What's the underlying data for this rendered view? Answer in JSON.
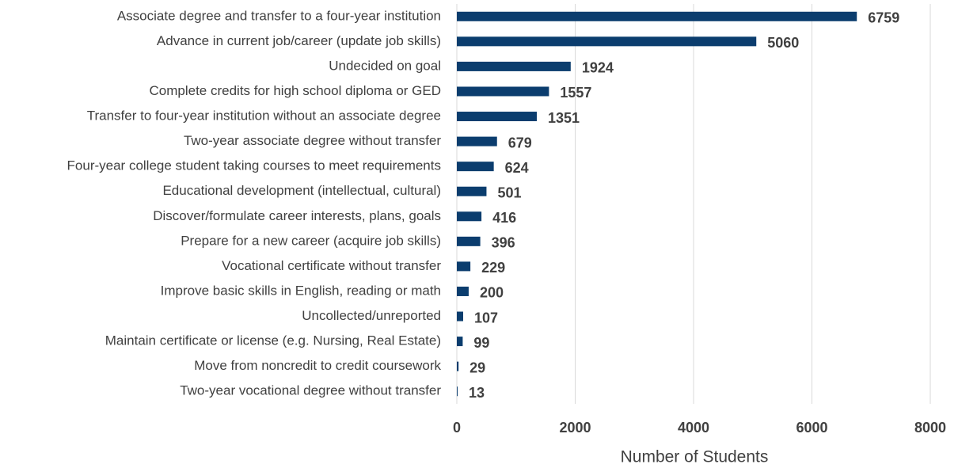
{
  "chart_data": {
    "type": "bar",
    "categories": [
      "Associate degree and transfer to a four-year institution",
      "Advance in current job/career (update job skills)",
      "Undecided on goal",
      "Complete credits for high school diploma or GED",
      "Transfer to four-year institution without an associate degree",
      "Two-year associate degree without transfer",
      "Four-year college student taking courses to meet requirements",
      "Educational development (intellectual, cultural)",
      "Discover/formulate career interests, plans, goals",
      "Prepare for a new career (acquire job skills)",
      "Vocational certificate without transfer",
      "Improve basic skills in English, reading or math",
      "Uncollected/unreported",
      "Maintain certificate or license (e.g. Nursing, Real Estate)",
      "Move from noncredit to credit coursework",
      "Two-year vocational degree without transfer"
    ],
    "values": [
      6759,
      5060,
      1924,
      1557,
      1351,
      679,
      624,
      501,
      416,
      396,
      229,
      200,
      107,
      99,
      29,
      13
    ],
    "color": "#0b3d6e",
    "xlabel": "Number of Students",
    "xlim": [
      0,
      8000
    ],
    "xticks": [
      0,
      2000,
      4000,
      6000,
      8000
    ],
    "grid": true
  }
}
